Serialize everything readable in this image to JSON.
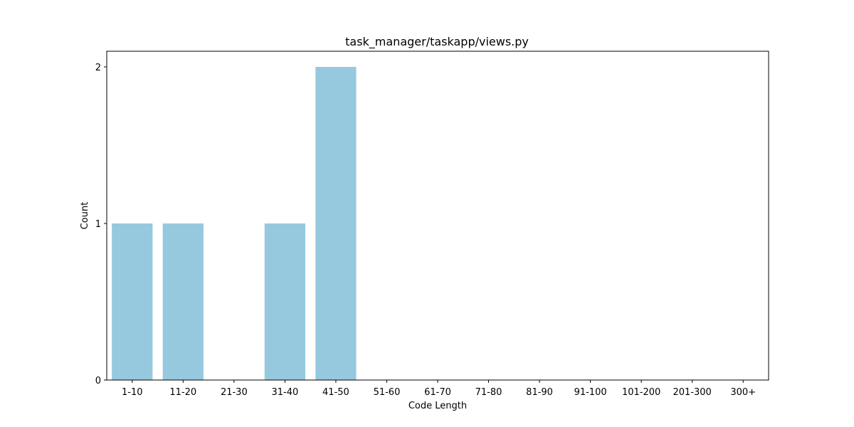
{
  "chart_data": {
    "type": "bar",
    "title": "task_manager/taskapp/views.py",
    "xlabel": "Code Length",
    "ylabel": "Count",
    "categories": [
      "1-10",
      "11-20",
      "21-30",
      "31-40",
      "41-50",
      "51-60",
      "61-70",
      "71-80",
      "81-90",
      "91-100",
      "101-200",
      "201-300",
      "300+"
    ],
    "values": [
      1,
      1,
      0,
      1,
      2,
      0,
      0,
      0,
      0,
      0,
      0,
      0,
      0
    ],
    "ylim": [
      0,
      2.1
    ],
    "yticks": [
      "0",
      "1",
      "2"
    ],
    "bar_color": "#96c9de",
    "grid": false,
    "legend": "none"
  }
}
